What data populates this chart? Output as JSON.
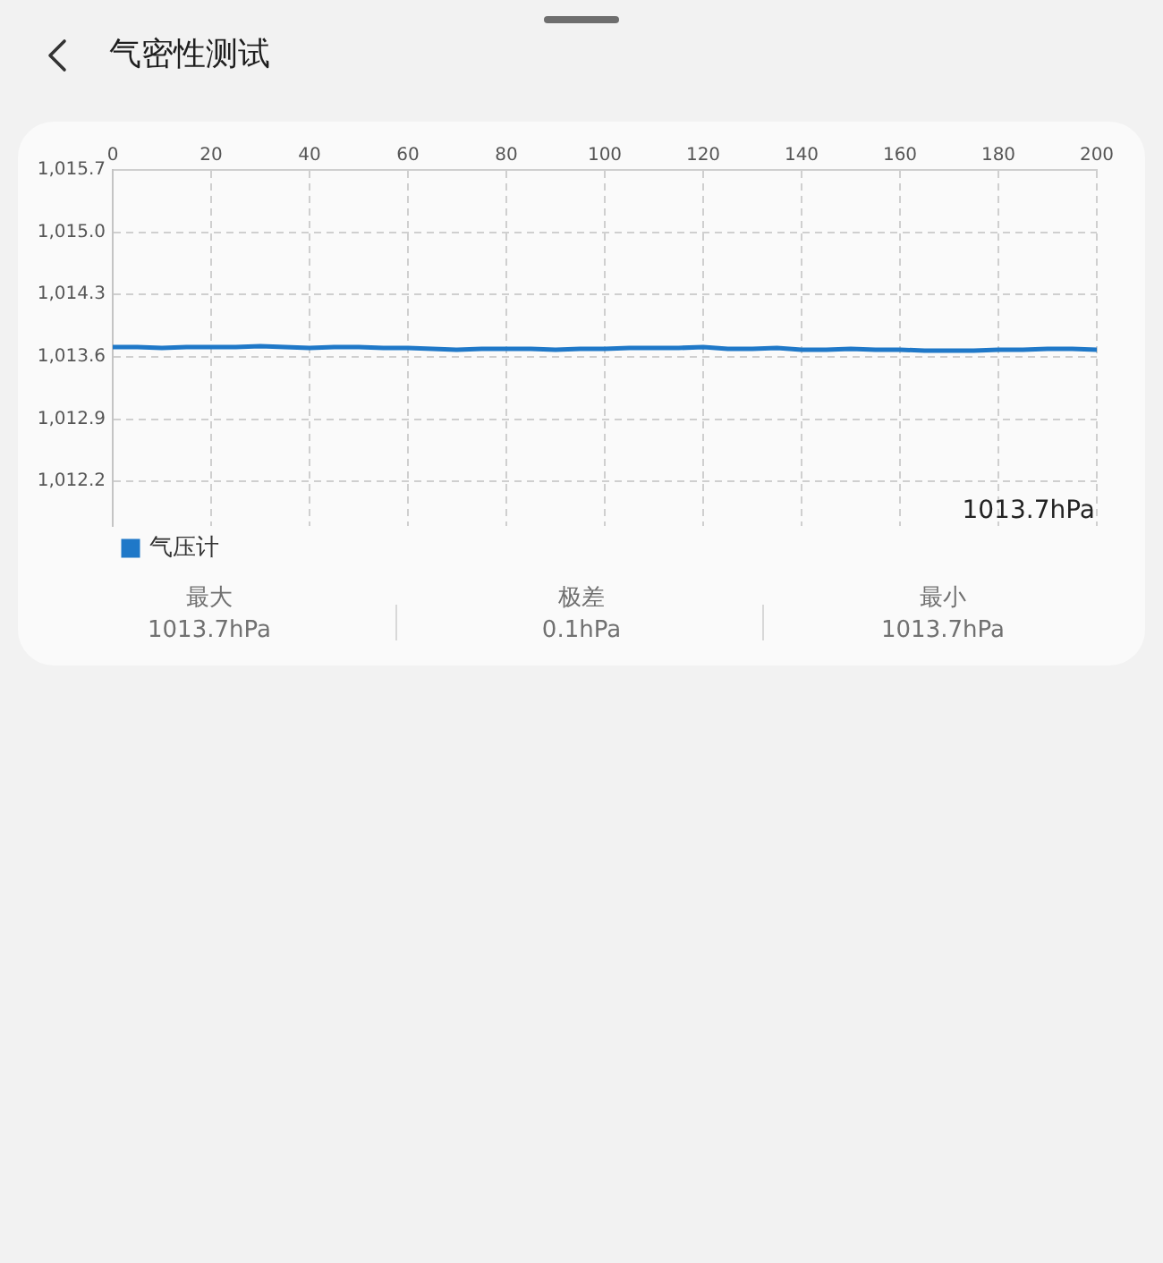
{
  "chart_data": {
    "type": "line",
    "title": "气密性测试",
    "x": [
      0,
      5,
      10,
      15,
      20,
      25,
      30,
      35,
      40,
      45,
      50,
      55,
      60,
      65,
      70,
      75,
      80,
      85,
      90,
      95,
      100,
      105,
      110,
      115,
      120,
      125,
      130,
      135,
      140,
      145,
      150,
      155,
      160,
      165,
      170,
      175,
      180,
      185,
      190,
      195,
      200
    ],
    "series": [
      {
        "name": "气压计",
        "color": "#1f78c8",
        "values": [
          1013.71,
          1013.71,
          1013.7,
          1013.71,
          1013.71,
          1013.71,
          1013.72,
          1013.71,
          1013.7,
          1013.71,
          1013.71,
          1013.7,
          1013.7,
          1013.69,
          1013.68,
          1013.69,
          1013.69,
          1013.69,
          1013.68,
          1013.69,
          1013.69,
          1013.7,
          1013.7,
          1013.7,
          1013.71,
          1013.69,
          1013.69,
          1013.7,
          1013.68,
          1013.68,
          1013.69,
          1013.68,
          1013.68,
          1013.67,
          1013.67,
          1013.67,
          1013.68,
          1013.68,
          1013.69,
          1013.69,
          1013.68
        ]
      }
    ],
    "xlim": [
      0,
      200
    ],
    "xticks": [
      0,
      20,
      40,
      60,
      80,
      100,
      120,
      140,
      160,
      180,
      200
    ],
    "ylim": [
      1011.7,
      1015.7
    ],
    "yticks": [
      {
        "value": 1012.2,
        "label": "1,012.2"
      },
      {
        "value": 1012.9,
        "label": "1,012.9"
      },
      {
        "value": 1013.6,
        "label": "1,013.6"
      },
      {
        "value": 1014.3,
        "label": "1,014.3"
      },
      {
        "value": 1015.0,
        "label": "1,015.0"
      },
      {
        "value": 1015.7,
        "label": "1,015.7"
      }
    ],
    "grid": true,
    "legend": "bottom left",
    "marker": "none",
    "line_style": "solid",
    "annotations": [
      "1013.7hPa",
      "最大",
      "1013.7hPa",
      "极差",
      "0.1hPa",
      "最小",
      "1013.7hPa"
    ]
  }
}
